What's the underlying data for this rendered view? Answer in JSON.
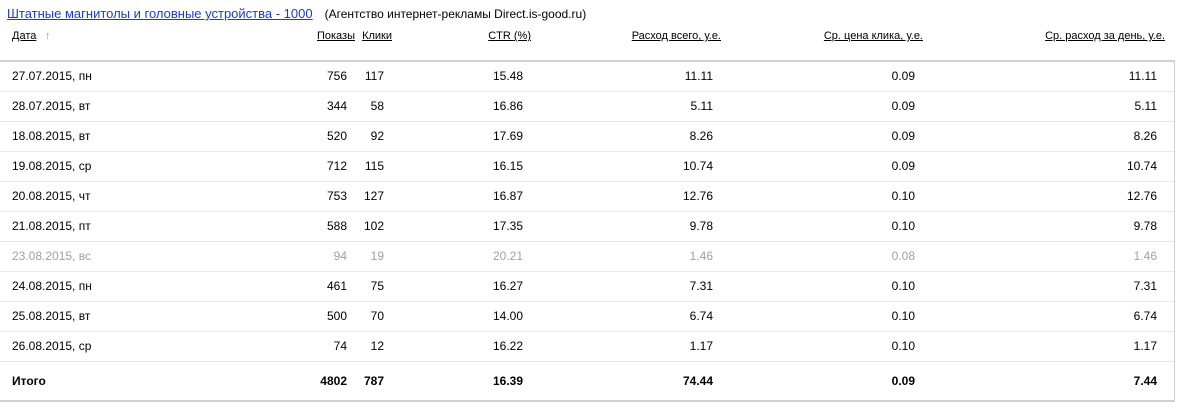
{
  "title": {
    "link": "Штатные магнитолы и головные устройства - 1000",
    "agency": "(Агентство интернет-рекламы Direct.is-good.ru)"
  },
  "columns": [
    "Дата",
    "Показы",
    "Клики",
    "CTR (%)",
    "Расход всего, у.е.",
    "Ср. цена клика, у.е.",
    "Ср. расход за день, у.е."
  ],
  "sort_icon": "arrow-up-icon",
  "rows": [
    [
      "27.07.2015, пн",
      "756",
      "117",
      "15.48",
      "11.11",
      "0.09",
      "11.11"
    ],
    [
      "28.07.2015, вт",
      "344",
      "58",
      "16.86",
      "5.11",
      "0.09",
      "5.11"
    ],
    [
      "18.08.2015, вт",
      "520",
      "92",
      "17.69",
      "8.26",
      "0.09",
      "8.26"
    ],
    [
      "19.08.2015, ср",
      "712",
      "115",
      "16.15",
      "10.74",
      "0.09",
      "10.74"
    ],
    [
      "20.08.2015, чт",
      "753",
      "127",
      "16.87",
      "12.76",
      "0.10",
      "12.76"
    ],
    [
      "21.08.2015, пт",
      "588",
      "102",
      "17.35",
      "9.78",
      "0.10",
      "9.78"
    ],
    [
      "23.08.2015, вс",
      "94",
      "19",
      "20.21",
      "1.46",
      "0.08",
      "1.46"
    ],
    [
      "24.08.2015, пн",
      "461",
      "75",
      "16.27",
      "7.31",
      "0.10",
      "7.31"
    ],
    [
      "25.08.2015, вт",
      "500",
      "70",
      "14.00",
      "6.74",
      "0.10",
      "6.74"
    ],
    [
      "26.08.2015, ср",
      "74",
      "12",
      "16.22",
      "1.17",
      "0.10",
      "1.17"
    ]
  ],
  "muted_rows": [
    6
  ],
  "total": [
    "Итого",
    "4802",
    "787",
    "16.39",
    "74.44",
    "0.09",
    "7.44"
  ]
}
